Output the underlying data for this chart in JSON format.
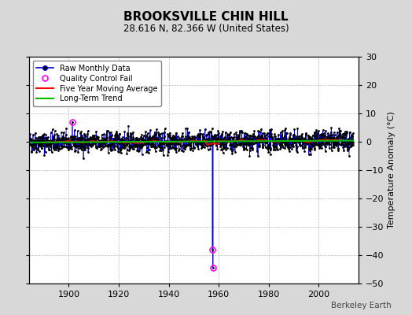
{
  "title": "BROOKSVILLE CHIN HILL",
  "subtitle": "28.616 N, 82.366 W (United States)",
  "ylabel": "Temperature Anomaly (°C)",
  "watermark": "Berkeley Earth",
  "xlim": [
    1884,
    2016
  ],
  "ylim": [
    -50,
    30
  ],
  "yticks": [
    -50,
    -40,
    -30,
    -20,
    -10,
    0,
    10,
    20,
    30
  ],
  "xticks": [
    1900,
    1920,
    1940,
    1960,
    1980,
    2000
  ],
  "bg_color": "#d8d8d8",
  "plot_bg_color": "#ffffff",
  "raw_line_color": "#0000dd",
  "raw_marker_color": "#000000",
  "ma_color": "#ff0000",
  "trend_color": "#00bb00",
  "qc_color": "#ff00ff",
  "spike1_year": 1957.5,
  "spike1_value": -38.0,
  "spike2_year": 1957.75,
  "spike2_value": -44.5,
  "seed": 42,
  "noise_std": 1.8,
  "start_year": 1884,
  "end_year": 2013
}
